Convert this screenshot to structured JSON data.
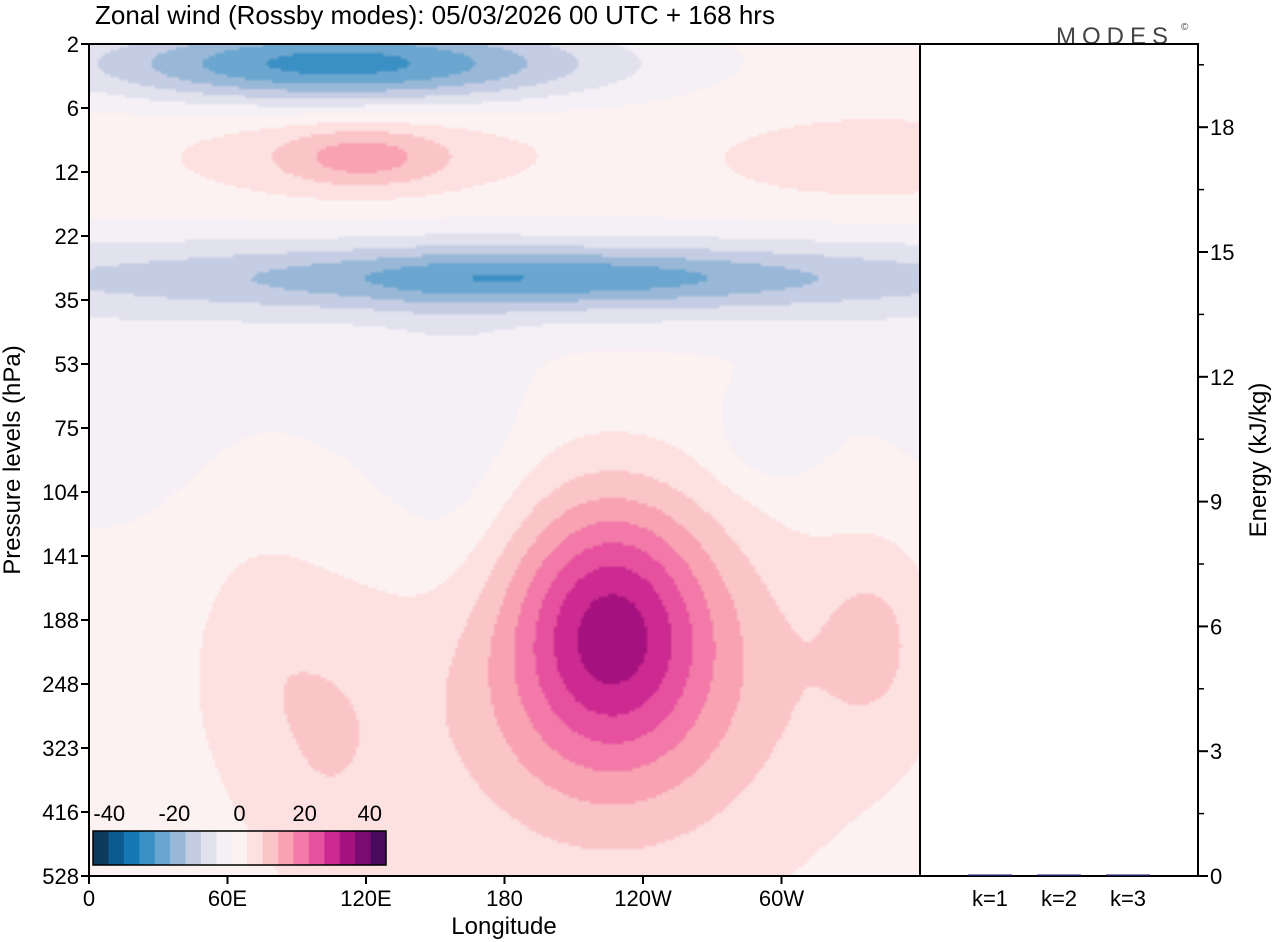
{
  "page": {
    "title": "Zonal wind (Rossby modes):  05/03/2026  00 UTC  + 168 hrs",
    "logo": "MODES",
    "logo_mark": "©"
  },
  "chart_data": [
    {
      "type": "heatmap",
      "title": "Zonal wind (Rossby modes):  05/03/2026  00 UTC  + 168 hrs",
      "xlabel": "Longitude",
      "ylabel": "Pressure levels (hPa)",
      "x_ticks": [
        "0",
        "60E",
        "120E",
        "180",
        "120W",
        "60W"
      ],
      "x_tick_degrees": [
        0,
        60,
        120,
        180,
        240,
        300
      ],
      "xlim": [
        0,
        360
      ],
      "y_levels": [
        "2",
        "6",
        "12",
        "22",
        "35",
        "53",
        "75",
        "104",
        "141",
        "188",
        "248",
        "323",
        "416",
        "528"
      ],
      "colorbar": {
        "ticks": [
          "-40",
          "-20",
          "0",
          "20",
          "40"
        ],
        "tick_values": [
          -40,
          -20,
          0,
          20,
          40
        ],
        "step": 5,
        "colors": [
          "#0d3b5e",
          "#0b5a8f",
          "#1677b5",
          "#3a8fc4",
          "#6aa6cf",
          "#99b8d8",
          "#c4cde3",
          "#e2e2ee",
          "#f4f0f6",
          "#fdf2f2",
          "#fde0e0",
          "#fbc5c8",
          "#f8a2b2",
          "#f279a8",
          "#e6509f",
          "#cc2a90",
          "#a5117f",
          "#7a0b70",
          "#4a0a5c"
        ]
      },
      "anomaly_fields": [
        {
          "u": -30,
          "x": 0.3,
          "y": 0.022,
          "sx": 0.22,
          "sy": 0.035
        },
        {
          "u": -14,
          "x": 0.5,
          "y": 0.28,
          "sx": 0.75,
          "sy": 0.04
        },
        {
          "u": -12,
          "x": 0.55,
          "y": 0.28,
          "sx": 0.22,
          "sy": 0.022
        },
        {
          "u": 10,
          "x": 0.33,
          "y": 0.135,
          "sx": 0.07,
          "sy": 0.025
        },
        {
          "u": 6,
          "x": 0.32,
          "y": 0.13,
          "sx": 0.17,
          "sy": 0.045
        },
        {
          "u": 5,
          "x": 0.94,
          "y": 0.14,
          "sx": 0.15,
          "sy": 0.045
        },
        {
          "u": 22,
          "x": 0.63,
          "y": 0.7,
          "sx": 0.08,
          "sy": 0.11
        },
        {
          "u": 15,
          "x": 0.63,
          "y": 0.75,
          "sx": 0.18,
          "sy": 0.17
        },
        {
          "u": 7,
          "x": 0.95,
          "y": 0.71,
          "sx": 0.05,
          "sy": 0.09
        },
        {
          "u": 5,
          "x": 0.2,
          "y": 0.72,
          "sx": 0.06,
          "sy": 0.13
        },
        {
          "u": 5,
          "x": 0.29,
          "y": 0.86,
          "sx": 0.06,
          "sy": 0.13
        },
        {
          "u": -5,
          "x": 0.44,
          "y": 0.52,
          "sx": 0.06,
          "sy": 0.15
        },
        {
          "u": -6,
          "x": 0.82,
          "y": 0.47,
          "sx": 0.04,
          "sy": 0.04
        }
      ]
    },
    {
      "type": "bar",
      "ylabel": "Energy (kJ/kg)",
      "categories": [
        "k=1",
        "k=2",
        "k=3"
      ],
      "values": [
        0.03,
        0.03,
        0.02
      ],
      "ylim": [
        0,
        20
      ],
      "y_ticks": [
        0,
        3,
        6,
        9,
        12,
        15,
        18
      ]
    }
  ]
}
